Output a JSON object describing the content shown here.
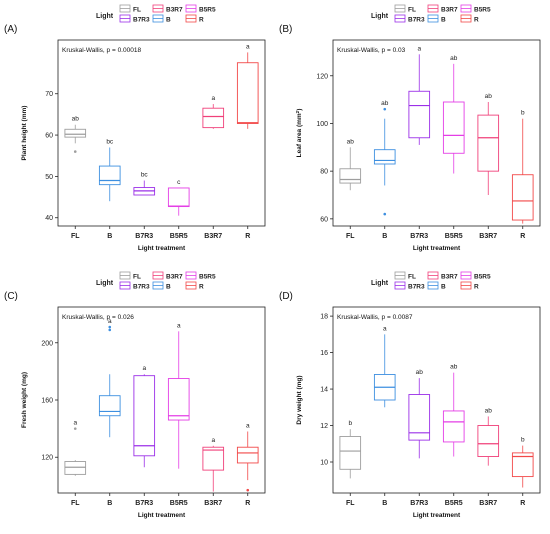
{
  "colors": {
    "FL": "#9e9e9e",
    "B": "#3d8fe0",
    "B7R3": "#9b30e8",
    "B5R5": "#e43ee6",
    "B3R7": "#f0407a",
    "R": "#f24848"
  },
  "legend": {
    "title": "Light",
    "items": [
      "FL",
      "B7R3",
      "B3R7",
      "B",
      "B5R5",
      "R"
    ]
  },
  "chart_data": [
    {
      "panel_label": "(A)",
      "type": "box",
      "annotation": "Kruskal-Wallis, p = 0.00018",
      "xlabel": "Light treatment",
      "ylabel": "Plant height (mm)",
      "ylabel_sup": "",
      "ylabel_after": "",
      "ylim": [
        38,
        83
      ],
      "yticks": [
        40,
        50,
        60,
        70
      ],
      "categories": [
        "FL",
        "B",
        "B7R3",
        "B5R5",
        "B3R7",
        "R"
      ],
      "boxes": [
        {
          "min": 58,
          "q1": 59.5,
          "median": 60.2,
          "q3": 61.4,
          "max": 62.5,
          "outliers": [
            56
          ]
        },
        {
          "min": 44,
          "q1": 48,
          "median": 49,
          "q3": 52.5,
          "max": 57,
          "outliers": []
        },
        {
          "min": 45.5,
          "q1": 45.5,
          "median": 46.5,
          "q3": 47.3,
          "max": 49,
          "outliers": []
        },
        {
          "min": 40.5,
          "q1": 42.7,
          "median": 42.8,
          "q3": 47.2,
          "max": 47.2,
          "outliers": []
        },
        {
          "min": 61.5,
          "q1": 61.8,
          "median": 64.5,
          "q3": 66.5,
          "max": 67.5,
          "outliers": []
        },
        {
          "min": 61.5,
          "q1": 62.8,
          "median": 63,
          "q3": 77.5,
          "max": 80,
          "outliers": []
        }
      ],
      "letters": [
        "ab",
        "bc",
        "bc",
        "c",
        "a",
        "a"
      ]
    },
    {
      "panel_label": "(B)",
      "type": "box",
      "annotation": "Kruskal-Wallis, p = 0.03",
      "xlabel": "Light treatment",
      "ylabel": "Leaf area (mm",
      "ylabel_sup": "2",
      "ylabel_after": ")",
      "ylim": [
        57,
        135
      ],
      "yticks": [
        60,
        80,
        100,
        120
      ],
      "categories": [
        "FL",
        "B",
        "B7R3",
        "B5R5",
        "B3R7",
        "R"
      ],
      "boxes": [
        {
          "min": 72,
          "q1": 75,
          "median": 76.5,
          "q3": 81,
          "max": 90,
          "outliers": []
        },
        {
          "min": 74,
          "q1": 83,
          "median": 84.5,
          "q3": 89,
          "max": 102,
          "outliers": [
            106,
            62
          ]
        },
        {
          "min": 91,
          "q1": 94,
          "median": 107.5,
          "q3": 113.5,
          "max": 129,
          "outliers": []
        },
        {
          "min": 79,
          "q1": 87.5,
          "median": 95,
          "q3": 109,
          "max": 125,
          "outliers": []
        },
        {
          "min": 70,
          "q1": 80,
          "median": 94,
          "q3": 103.5,
          "max": 109,
          "outliers": []
        },
        {
          "min": 58,
          "q1": 59.5,
          "median": 67.5,
          "q3": 78.5,
          "max": 102,
          "outliers": []
        }
      ],
      "letters": [
        "ab",
        "ab",
        "a",
        "ab",
        "ab",
        "b"
      ]
    },
    {
      "panel_label": "(C)",
      "type": "box",
      "annotation": "Kruskal-Wallis, p = 0.026",
      "xlabel": "Light treatment",
      "ylabel": "Fresh weight (mg)",
      "ylabel_sup": "",
      "ylabel_after": "",
      "ylim": [
        95,
        225
      ],
      "yticks": [
        120,
        160,
        200
      ],
      "categories": [
        "FL",
        "B",
        "B7R3",
        "B5R5",
        "B3R7",
        "R"
      ],
      "boxes": [
        {
          "min": 107,
          "q1": 108,
          "median": 113,
          "q3": 117,
          "max": 118,
          "outliers": [
            140
          ]
        },
        {
          "min": 134,
          "q1": 149,
          "median": 152,
          "q3": 163,
          "max": 178,
          "outliers": [
            209,
            211
          ]
        },
        {
          "min": 113,
          "q1": 121,
          "median": 128,
          "q3": 177,
          "max": 178,
          "outliers": []
        },
        {
          "min": 112,
          "q1": 146,
          "median": 149,
          "q3": 175,
          "max": 208,
          "outliers": []
        },
        {
          "min": 96,
          "q1": 111,
          "median": 125,
          "q3": 127,
          "max": 128,
          "outliers": []
        },
        {
          "min": 104,
          "q1": 116,
          "median": 123,
          "q3": 127,
          "max": 138,
          "outliers": [
            97
          ]
        }
      ],
      "letters": [
        "a",
        "a",
        "a",
        "a",
        "a",
        "a"
      ]
    },
    {
      "panel_label": "(D)",
      "type": "box",
      "annotation": "Kruskal-Wallis, p = 0.0087",
      "xlabel": "Light treatment",
      "ylabel": "Dry weight (mg)",
      "ylabel_sup": "",
      "ylabel_after": "",
      "ylim": [
        8.3,
        18.5
      ],
      "yticks": [
        10,
        12,
        14,
        16,
        18
      ],
      "categories": [
        "FL",
        "B",
        "B7R3",
        "B5R5",
        "B3R7",
        "R"
      ],
      "boxes": [
        {
          "min": 9.1,
          "q1": 9.6,
          "median": 10.6,
          "q3": 11.4,
          "max": 11.8,
          "outliers": []
        },
        {
          "min": 13,
          "q1": 13.4,
          "median": 14.1,
          "q3": 14.8,
          "max": 17,
          "outliers": []
        },
        {
          "min": 10.2,
          "q1": 11.2,
          "median": 11.6,
          "q3": 13.7,
          "max": 14.6,
          "outliers": []
        },
        {
          "min": 10.3,
          "q1": 11.1,
          "median": 12.2,
          "q3": 12.8,
          "max": 14.9,
          "outliers": []
        },
        {
          "min": 9.8,
          "q1": 10.3,
          "median": 11,
          "q3": 12,
          "max": 12.5,
          "outliers": []
        },
        {
          "min": 8.6,
          "q1": 9.2,
          "median": 10.3,
          "q3": 10.5,
          "max": 10.9,
          "outliers": []
        }
      ],
      "letters": [
        "b",
        "a",
        "ab",
        "ab",
        "ab",
        "b"
      ]
    }
  ]
}
